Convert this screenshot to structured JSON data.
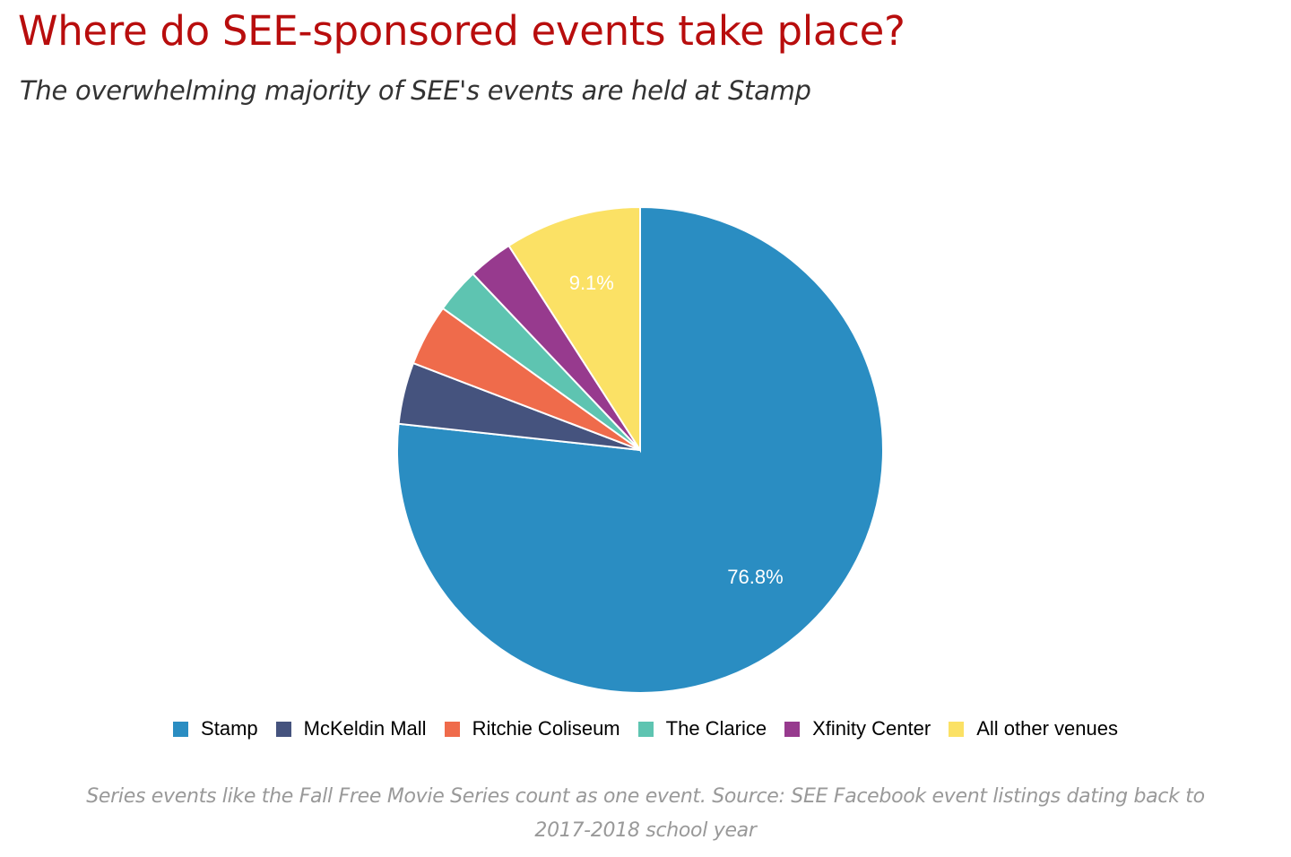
{
  "header": {
    "title": "Where do SEE-sponsored events take place?",
    "subtitle": "The overwhelming majority of SEE's events are held at Stamp"
  },
  "chart_data": {
    "type": "pie",
    "categories": [
      "Stamp",
      "McKeldin Mall",
      "Ritchie Coliseum",
      "The Clarice",
      "Xfinity Center",
      "All other venues"
    ],
    "values": [
      76.8,
      4.1,
      4.1,
      3.0,
      3.0,
      9.1
    ],
    "colors": [
      "#2a8dc2",
      "#45537e",
      "#ef6b4b",
      "#5ec4b1",
      "#973a8e",
      "#fbe165"
    ],
    "data_labels": [
      "76.8%",
      "",
      "",
      "",
      "",
      "9.1%"
    ],
    "start": "12 o'clock",
    "direction": "clockwise",
    "legend_placement": "bottom"
  },
  "footnote": {
    "line1": "Series events like the Fall Free Movie Series count as one event. Source: SEE Facebook event listings dating back to",
    "line2": "2017-2018 school year"
  }
}
